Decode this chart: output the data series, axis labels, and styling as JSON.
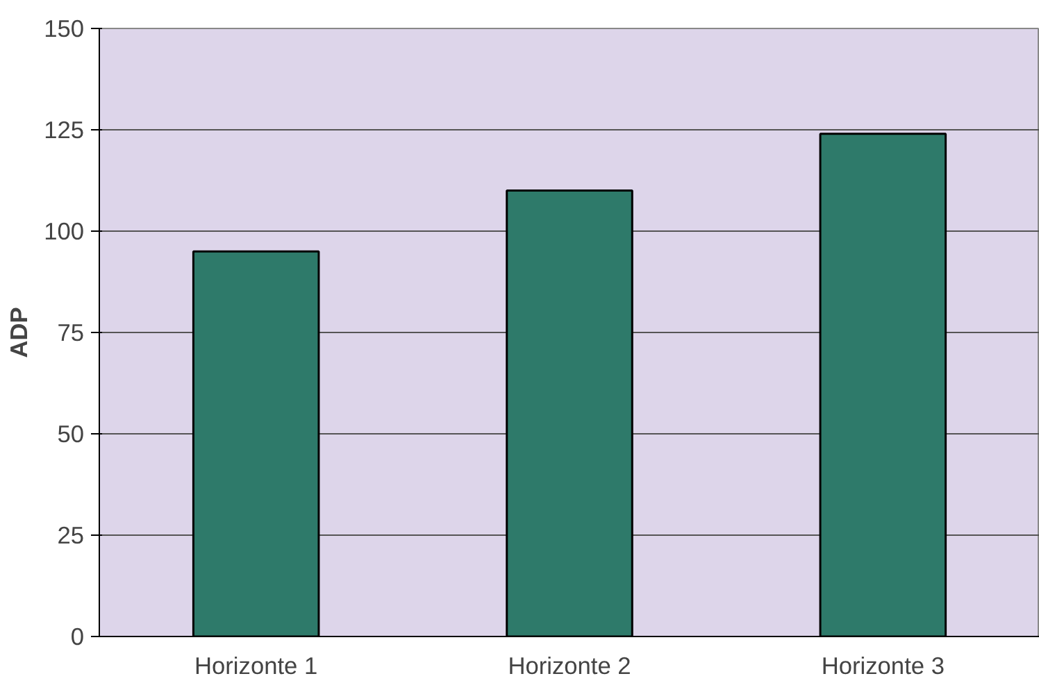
{
  "chart_data": {
    "type": "bar",
    "ylabel": "ADP",
    "categories": [
      "Horizonte 1",
      "Horizonte 2",
      "Horizonte 3"
    ],
    "values": [
      95,
      110,
      124
    ],
    "color": "#2e7a6a",
    "ylim": [
      0,
      150
    ],
    "yticks": [
      0,
      25,
      50,
      75,
      100,
      125,
      150
    ],
    "grid": "y"
  }
}
